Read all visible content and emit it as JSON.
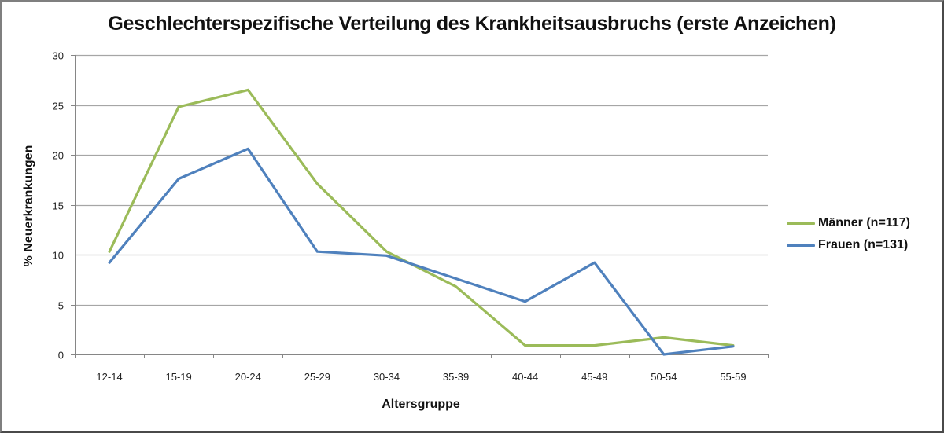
{
  "chart_data": {
    "type": "line",
    "title": "Geschlechterspezifische Verteilung des Krankheitsausbruchs (erste Anzeichen)",
    "xlabel": "Altersgruppe",
    "ylabel": "% Neuerkrankungen",
    "ylim": [
      0,
      30
    ],
    "yticks": [
      0,
      5,
      10,
      15,
      20,
      25,
      30
    ],
    "grid": true,
    "legend_position": "right",
    "categories": [
      "12-14",
      "15-19",
      "20-24",
      "25-29",
      "30-34",
      "35-39",
      "40-44",
      "45-49",
      "50-54",
      "55-59"
    ],
    "series": [
      {
        "name": "Männer (n=117)",
        "color": "#9bbb59",
        "values": [
          10.3,
          24.8,
          26.5,
          17.1,
          10.3,
          6.8,
          0.9,
          0.9,
          1.7,
          0.9
        ]
      },
      {
        "name": "Frauen (n=131)",
        "color": "#4f81bd",
        "values": [
          9.2,
          17.6,
          20.6,
          10.3,
          9.9,
          7.6,
          5.3,
          9.2,
          0.0,
          0.8
        ]
      }
    ]
  },
  "colors": {
    "grid": "#a6a6a6",
    "axis": "#868686"
  }
}
